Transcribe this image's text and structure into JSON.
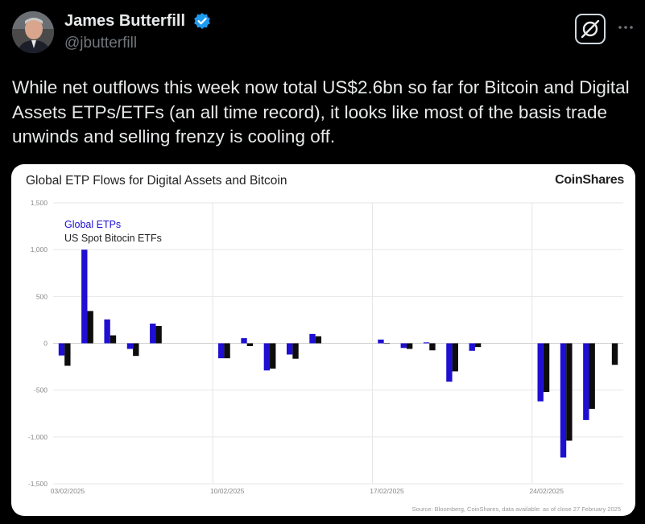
{
  "author": {
    "name": "James Butterfill",
    "handle": "@jbutterfill",
    "verified_icon": "verified-badge-icon",
    "avatar_icon": "avatar-photo"
  },
  "actions": {
    "grok_icon": "grok-icon",
    "more_icon": "more-horizontal-icon"
  },
  "tweet": {
    "text": "While net outflows this week now total US$2.6bn so far for Bitcoin and Digital Assets ETPs/ETFs (an all time record), it looks like most of the basis trade unwinds and selling frenzy is cooling off."
  },
  "colors": {
    "global": "#1e0fd2",
    "us_spot": "#0d0d0d",
    "background": "#000000",
    "card": "#ffffff"
  },
  "chart_data": {
    "type": "bar",
    "title": "Global ETP Flows for Digital Assets and Bitcoin",
    "brand": "CoinShares",
    "source": "Source: Bloomberg, CoinShares, data available: as of close 27 February 2025",
    "ylim": [
      -1500,
      1500
    ],
    "yticks": [
      "1,500",
      "1,000",
      "500",
      "0",
      "-500",
      "-1,000",
      "-1,500"
    ],
    "ytick_values": [
      1500,
      1000,
      500,
      0,
      -500,
      -1000,
      -1500
    ],
    "date_labels": [
      "03/02/2025",
      "10/02/2025",
      "17/02/2025",
      "24/02/2025"
    ],
    "legend_placement": "top-left",
    "grid": true,
    "series": [
      {
        "name": "Global ETPs",
        "color": "#1e0fd2",
        "values": [
          -130,
          1000,
          255,
          -60,
          210,
          null,
          null,
          -160,
          55,
          -290,
          -120,
          100,
          null,
          null,
          40,
          -50,
          10,
          -410,
          -80,
          null,
          null,
          -620,
          -1220,
          -820,
          null
        ]
      },
      {
        "name": "US Spot Bitocin ETFs",
        "color": "#0d0d0d",
        "values": [
          -240,
          345,
          85,
          -135,
          185,
          null,
          null,
          -160,
          -30,
          -270,
          -165,
          75,
          null,
          null,
          0,
          -60,
          -75,
          -300,
          -40,
          null,
          null,
          -520,
          -1040,
          -700,
          -230
        ]
      }
    ]
  }
}
